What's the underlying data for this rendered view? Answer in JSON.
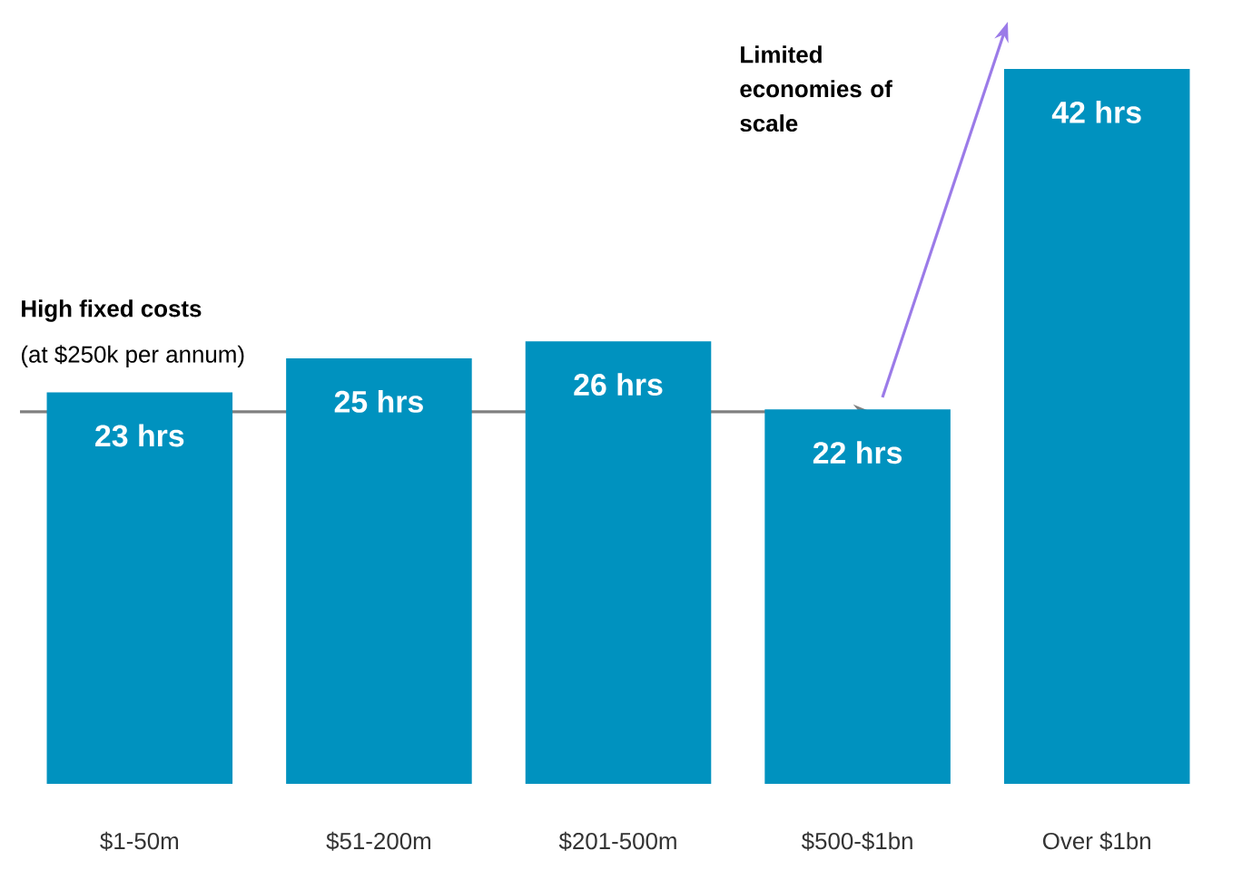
{
  "chart_data": {
    "type": "bar",
    "categories": [
      "$1-50m",
      "$51-200m",
      "$201-500m",
      "$500-$1bn",
      "Over $1bn"
    ],
    "values": [
      23,
      25,
      26,
      22,
      42
    ],
    "value_labels": [
      "23 hrs",
      "25 hrs",
      "26 hrs",
      "22 hrs",
      "42 hrs"
    ],
    "color": "#0092bf",
    "ylim": [
      0,
      42
    ],
    "annotations": [
      "High fixed costs",
      "(at $250k per annum)",
      "Limited economies of scale"
    ]
  }
}
